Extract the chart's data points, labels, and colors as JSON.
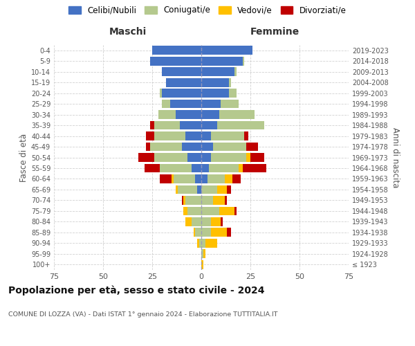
{
  "age_groups": [
    "100+",
    "95-99",
    "90-94",
    "85-89",
    "80-84",
    "75-79",
    "70-74",
    "65-69",
    "60-64",
    "55-59",
    "50-54",
    "45-49",
    "40-44",
    "35-39",
    "30-34",
    "25-29",
    "20-24",
    "15-19",
    "10-14",
    "5-9",
    "0-4"
  ],
  "birth_years": [
    "≤ 1923",
    "1924-1928",
    "1929-1933",
    "1934-1938",
    "1939-1943",
    "1944-1948",
    "1949-1953",
    "1954-1958",
    "1959-1963",
    "1964-1968",
    "1969-1973",
    "1974-1978",
    "1979-1983",
    "1984-1988",
    "1989-1993",
    "1994-1998",
    "1999-2003",
    "2004-2008",
    "2009-2013",
    "2014-2018",
    "2019-2023"
  ],
  "male": {
    "celibi": [
      0,
      0,
      0,
      0,
      0,
      0,
      0,
      2,
      3,
      5,
      7,
      10,
      8,
      11,
      13,
      16,
      20,
      18,
      20,
      26,
      25
    ],
    "coniugati": [
      0,
      0,
      1,
      3,
      5,
      7,
      8,
      10,
      11,
      16,
      17,
      16,
      16,
      13,
      9,
      4,
      1,
      0,
      0,
      0,
      0
    ],
    "vedovi": [
      0,
      0,
      1,
      1,
      3,
      2,
      1,
      1,
      1,
      0,
      0,
      0,
      0,
      0,
      0,
      0,
      0,
      0,
      0,
      0,
      0
    ],
    "divorziati": [
      0,
      0,
      0,
      0,
      0,
      0,
      1,
      0,
      6,
      8,
      8,
      2,
      4,
      2,
      0,
      0,
      0,
      0,
      0,
      0,
      0
    ]
  },
  "female": {
    "nubili": [
      0,
      0,
      0,
      0,
      0,
      0,
      0,
      0,
      3,
      4,
      5,
      6,
      5,
      8,
      9,
      10,
      14,
      14,
      17,
      21,
      26
    ],
    "coniugate": [
      0,
      1,
      2,
      5,
      5,
      9,
      6,
      8,
      9,
      15,
      18,
      17,
      17,
      24,
      18,
      9,
      4,
      1,
      1,
      1,
      0
    ],
    "vedove": [
      1,
      1,
      6,
      8,
      5,
      8,
      6,
      5,
      4,
      2,
      2,
      0,
      0,
      0,
      0,
      0,
      0,
      0,
      0,
      0,
      0
    ],
    "divorziate": [
      0,
      0,
      0,
      2,
      1,
      1,
      1,
      2,
      4,
      12,
      7,
      6,
      2,
      0,
      0,
      0,
      0,
      0,
      0,
      0,
      0
    ]
  },
  "colors": {
    "celibi": "#4472c4",
    "coniugati": "#b5c98e",
    "vedovi": "#ffc000",
    "divorziati": "#c00000"
  },
  "xlim": 75,
  "title": "Popolazione per età, sesso e stato civile - 2024",
  "subtitle": "COMUNE DI LOZZA (VA) - Dati ISTAT 1° gennaio 2024 - Elaborazione TUTTITALIA.IT",
  "xlabel_left": "Maschi",
  "xlabel_right": "Femmine",
  "ylabel_left": "Fasce di età",
  "ylabel_right": "Anni di nascita",
  "legend_labels": [
    "Celibi/Nubili",
    "Coniugati/e",
    "Vedovi/e",
    "Divorziati/e"
  ],
  "background_color": "#ffffff",
  "grid_color": "#cccccc"
}
